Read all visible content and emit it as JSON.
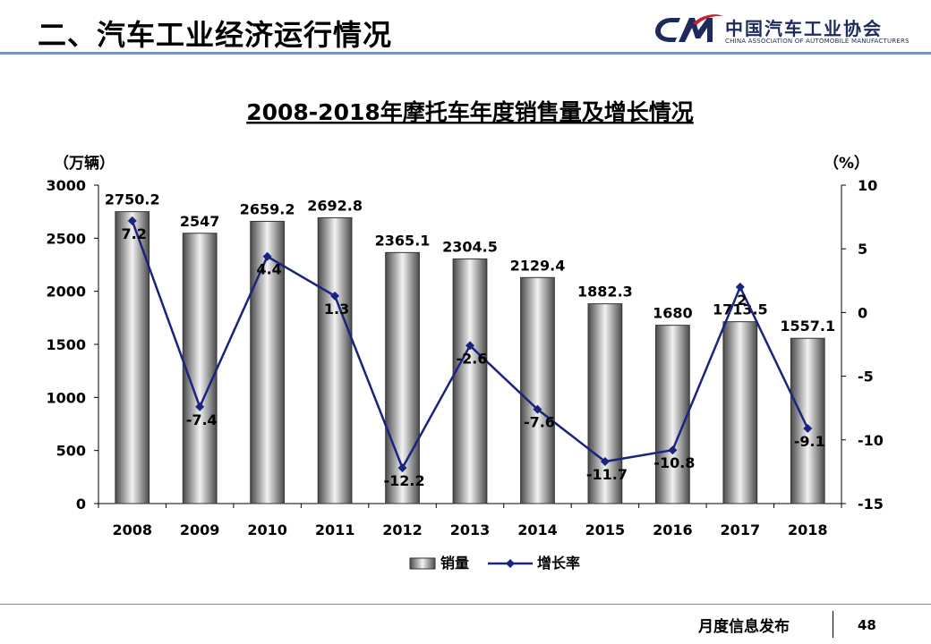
{
  "header": {
    "heading": "二、汽车工业经济运行情况",
    "logo_cn": "中国汽车工业协会",
    "logo_en": "CHINA ASSOCIATION OF AUTOMOBILE MANUFACTURERS"
  },
  "footer": {
    "title": "月度信息发布",
    "page": "48"
  },
  "colors": {
    "line": "#1a2380",
    "bar_dark": "#4a4a4a",
    "bar_light": "#f2f2f2",
    "header_rule": "#7b8fc0"
  },
  "chart_data": {
    "type": "bar",
    "title": "2008-2018年摩托车年度销售量及增长情况",
    "left_unit": "（万辆）",
    "right_unit": "（%）",
    "categories": [
      "2008",
      "2009",
      "2010",
      "2011",
      "2012",
      "2013",
      "2014",
      "2015",
      "2016",
      "2017",
      "2018"
    ],
    "left_ylim": [
      0,
      3000
    ],
    "left_ticks": [
      "0",
      "500",
      "1000",
      "1500",
      "2000",
      "2500",
      "3000"
    ],
    "right_ylim": [
      -15,
      10
    ],
    "right_ticks": [
      "10",
      "5",
      "0",
      "-5",
      "-10",
      "-15"
    ],
    "series": [
      {
        "name": "销量",
        "type": "bar",
        "values": [
          2750.2,
          2547,
          2659.2,
          2692.8,
          2365.1,
          2304.5,
          2129.4,
          1882.3,
          1680,
          1713.5,
          1557.1
        ],
        "labels": [
          "2750.2",
          "2547",
          "2659.2",
          "2692.8",
          "2365.1",
          "2304.5",
          "2129.4",
          "1882.3",
          "1680",
          "1713.5",
          "1557.1"
        ]
      },
      {
        "name": "增长率",
        "type": "line",
        "axis": "right",
        "values": [
          7.2,
          -7.4,
          4.4,
          1.3,
          -12.2,
          -2.6,
          -7.6,
          -11.7,
          -10.8,
          2,
          -9.1
        ],
        "labels": [
          "7.2",
          "-7.4",
          "4.4",
          "1.3",
          "-12.2",
          "-2.6",
          "-7.6",
          "-11.7",
          "-10.8",
          "2",
          "-9.1"
        ]
      }
    ],
    "legend_position": "bottom-center",
    "grid": false
  }
}
